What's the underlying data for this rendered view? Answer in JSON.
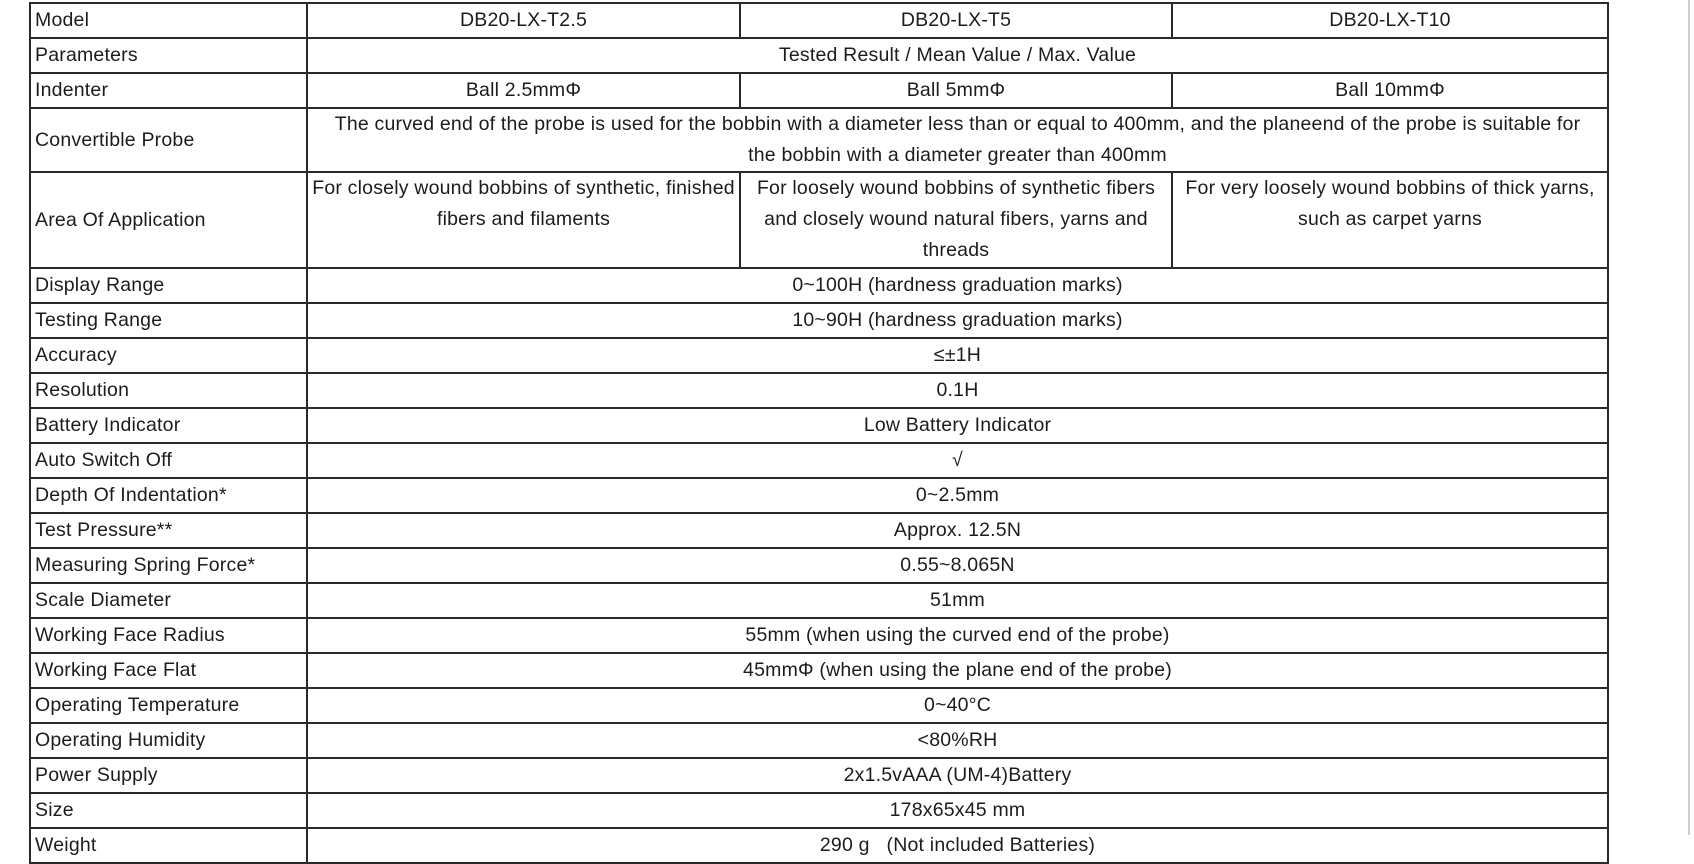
{
  "header": {
    "label": "Model",
    "models": [
      "DB20-LX-T2.5",
      "DB20-LX-T5",
      "DB20-LX-T10"
    ]
  },
  "parameters": {
    "label": "Parameters",
    "value": "Tested Result / Mean Value / Max. Value"
  },
  "indenter": {
    "label": "Indenter",
    "values": [
      "Ball 2.5mmΦ",
      "Ball 5mmΦ",
      "Ball 10mmΦ"
    ]
  },
  "probe": {
    "label": "Convertible Probe",
    "value": "The curved end of the probe is used for the bobbin with a diameter less than or equal to 400mm, and the planeend of the probe is suitable for the bobbin with a diameter greater than 400mm"
  },
  "application": {
    "label": "Area Of Application",
    "values": [
      "For closely wound bobbins of synthetic, finished fibers and filaments",
      "For loosely wound bobbins of synthetic fibers and closely wound natural fibers, yarns and threads",
      "For very loosely wound bobbins of thick yarns, such as carpet yarns"
    ]
  },
  "rows": [
    {
      "label": "Display Range",
      "value": "0~100H (hardness graduation marks)"
    },
    {
      "label": "Testing Range",
      "value": "10~90H (hardness graduation marks)"
    },
    {
      "label": "Accuracy",
      "value": "≤±1H"
    },
    {
      "label": "Resolution",
      "value": "0.1H"
    },
    {
      "label": "Battery Indicator",
      "value": "Low Battery Indicator"
    },
    {
      "label": "Auto Switch Off",
      "value": "√"
    },
    {
      "label": "Depth Of Indentation*",
      "value": "0~2.5mm"
    },
    {
      "label": "Test Pressure**",
      "value": "Approx. 12.5N"
    },
    {
      "label": "Measuring Spring Force*",
      "value": "0.55~8.065N"
    },
    {
      "label": "Scale Diameter",
      "value": "51mm"
    },
    {
      "label": "Working Face Radius",
      "value": "55mm (when using the curved end of the probe)"
    },
    {
      "label": "Working Face Flat",
      "value": "45mmΦ (when using the plane end of the probe)"
    },
    {
      "label": "Operating Temperature",
      "value": "0~40°C"
    },
    {
      "label": "Operating Humidity",
      "value": "<80%RH"
    },
    {
      "label": "Power Supply",
      "value": "2x1.5vAAA (UM-4)Battery"
    },
    {
      "label": "Size",
      "value": "178x65x45 mm"
    },
    {
      "label": "Weight",
      "value": "290 g   (Not included Batteries)"
    }
  ]
}
